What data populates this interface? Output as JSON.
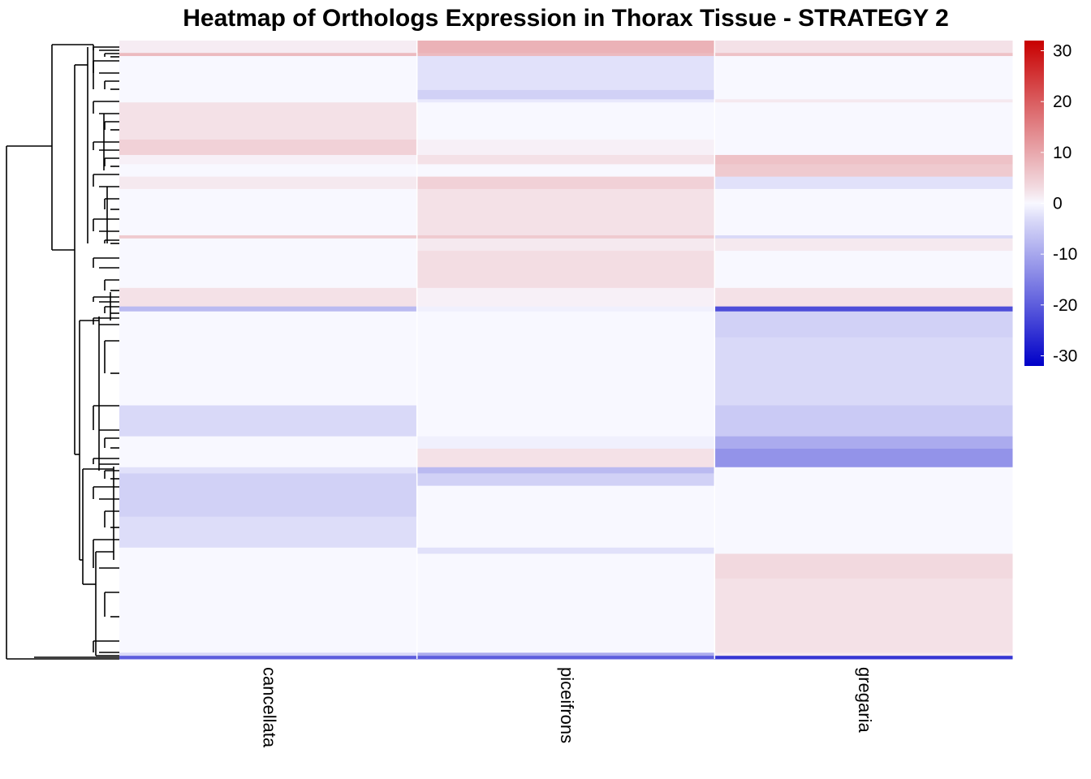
{
  "chart_data": {
    "type": "heatmap",
    "title": "Heatmap of Orthologs Expression in Thorax Tissue - STRATEGY 2",
    "columns": [
      "cancellata",
      "piceifrons",
      "gregaria"
    ],
    "color_scale": {
      "min": -32,
      "max": 32,
      "ticks": [
        30,
        20,
        10,
        0,
        -10,
        -20,
        -30
      ],
      "tick_labels": [
        "30",
        "20",
        "10",
        "0",
        "-10",
        "-20",
        "-30"
      ],
      "low_color": "#0000c8",
      "mid_color": "#f8f8ff",
      "high_color": "#c80000"
    },
    "row_order_fraction_note": "rows are ortholog genes ordered by hierarchical clustering; values are estimated per row segment",
    "row_segments": [
      {
        "from": 0.0,
        "to": 0.02,
        "values": [
          1.5,
          9,
          3
        ]
      },
      {
        "from": 0.02,
        "to": 0.025,
        "values": [
          8,
          8,
          7
        ]
      },
      {
        "from": 0.025,
        "to": 0.08,
        "values": [
          0,
          -3,
          0
        ]
      },
      {
        "from": 0.08,
        "to": 0.095,
        "values": [
          0,
          -5,
          0
        ]
      },
      {
        "from": 0.095,
        "to": 0.1,
        "values": [
          0,
          -2,
          2
        ]
      },
      {
        "from": 0.1,
        "to": 0.16,
        "values": [
          3,
          0,
          0
        ]
      },
      {
        "from": 0.16,
        "to": 0.185,
        "values": [
          5,
          1,
          0
        ]
      },
      {
        "from": 0.185,
        "to": 0.2,
        "values": [
          1,
          3,
          7
        ]
      },
      {
        "from": 0.2,
        "to": 0.22,
        "values": [
          0,
          0,
          6
        ]
      },
      {
        "from": 0.22,
        "to": 0.24,
        "values": [
          2,
          5,
          -3
        ]
      },
      {
        "from": 0.24,
        "to": 0.315,
        "values": [
          0,
          3,
          0
        ]
      },
      {
        "from": 0.315,
        "to": 0.32,
        "values": [
          6,
          6,
          -4
        ]
      },
      {
        "from": 0.32,
        "to": 0.34,
        "values": [
          0,
          2,
          2
        ]
      },
      {
        "from": 0.34,
        "to": 0.4,
        "values": [
          0,
          3.5,
          0
        ]
      },
      {
        "from": 0.4,
        "to": 0.43,
        "values": [
          3,
          1,
          3
        ]
      },
      {
        "from": 0.43,
        "to": 0.438,
        "values": [
          -8,
          -1,
          -22
        ]
      },
      {
        "from": 0.438,
        "to": 0.48,
        "values": [
          0,
          0,
          -5
        ]
      },
      {
        "from": 0.48,
        "to": 0.59,
        "values": [
          0,
          0,
          -4
        ]
      },
      {
        "from": 0.59,
        "to": 0.64,
        "values": [
          -4,
          0,
          -6
        ]
      },
      {
        "from": 0.64,
        "to": 0.66,
        "values": [
          0,
          -1,
          -10
        ]
      },
      {
        "from": 0.66,
        "to": 0.69,
        "values": [
          0,
          3,
          -13
        ]
      },
      {
        "from": 0.69,
        "to": 0.7,
        "values": [
          -3,
          -8,
          0
        ]
      },
      {
        "from": 0.7,
        "to": 0.72,
        "values": [
          -5,
          -5,
          0
        ]
      },
      {
        "from": 0.72,
        "to": 0.77,
        "values": [
          -5,
          0,
          0
        ]
      },
      {
        "from": 0.77,
        "to": 0.82,
        "values": [
          -3.5,
          0,
          0
        ]
      },
      {
        "from": 0.82,
        "to": 0.83,
        "values": [
          0,
          -3,
          0
        ]
      },
      {
        "from": 0.83,
        "to": 0.87,
        "values": [
          0,
          0,
          4
        ]
      },
      {
        "from": 0.87,
        "to": 0.99,
        "values": [
          0,
          0,
          3
        ]
      },
      {
        "from": 0.99,
        "to": 0.995,
        "values": [
          -4,
          -10,
          2
        ]
      },
      {
        "from": 0.995,
        "to": 1.0,
        "values": [
          -20,
          -20,
          -25
        ]
      }
    ],
    "dendrogram": "row dendrogram on left",
    "legend_position": "right"
  }
}
